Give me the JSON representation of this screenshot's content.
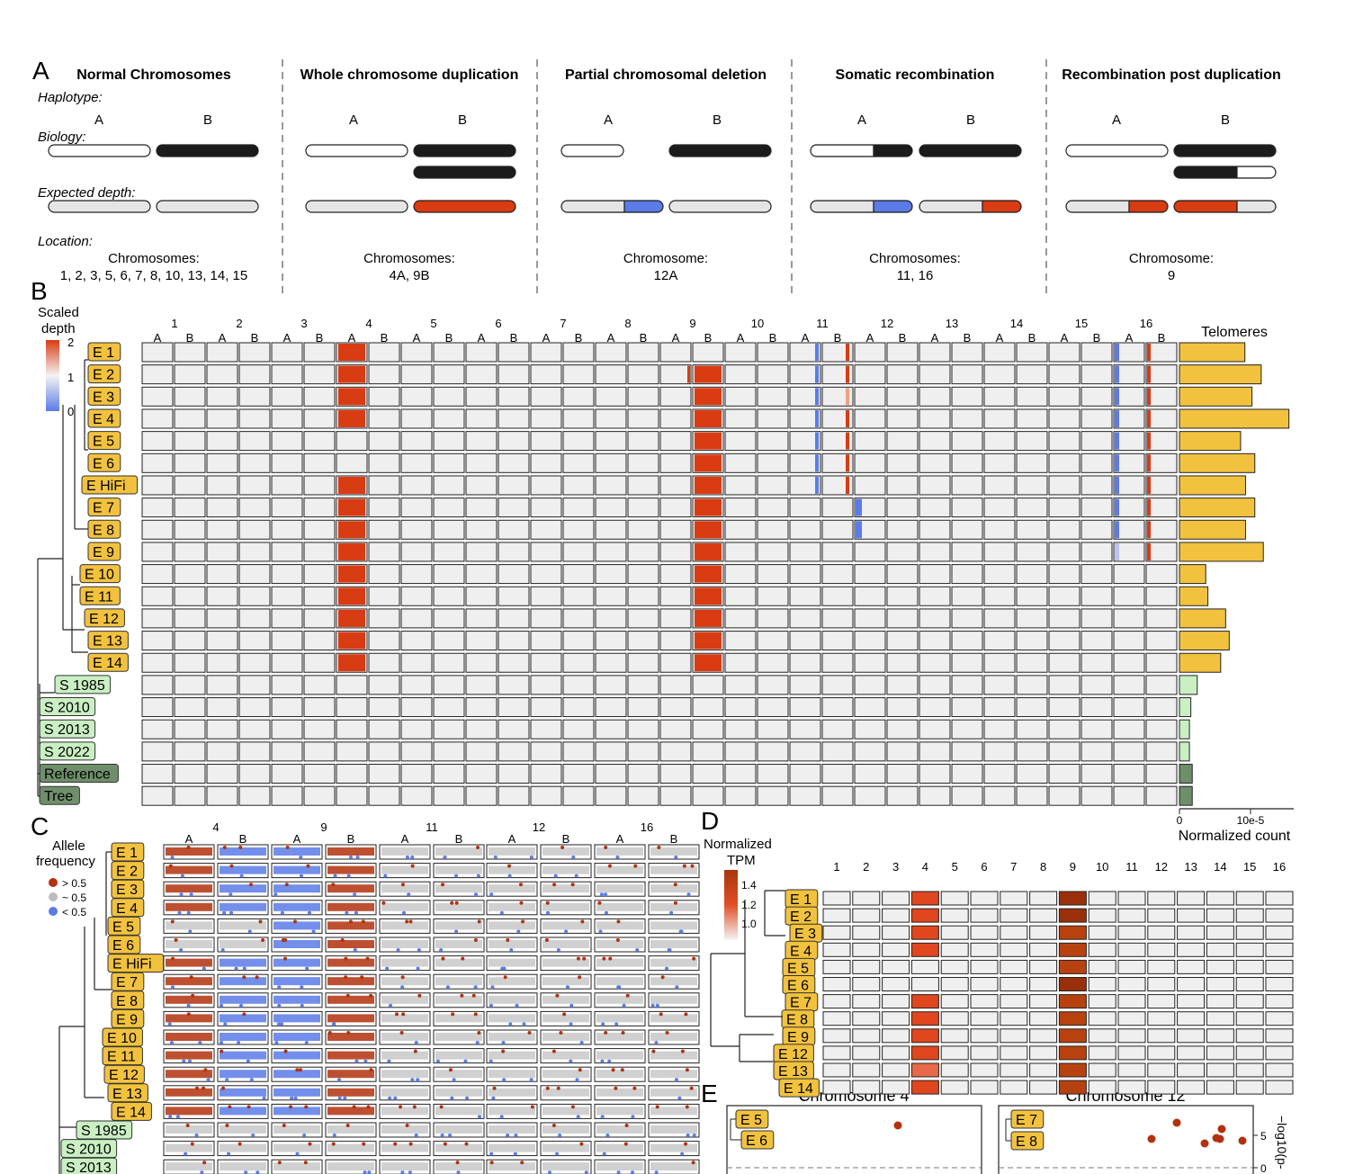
{
  "panelA": {
    "letter": "A",
    "row_labels": {
      "haplotype": "Haplotype:",
      "biology": "Biology:",
      "expected": "Expected depth:",
      "location": "Location:"
    },
    "columns": [
      {
        "title": "Normal Chromosomes",
        "loc1": "Chromosomes:",
        "loc2": "1, 2, 3, 5, 6, 7, 8, 10, 13, 14, 15"
      },
      {
        "title": "Whole chromosome duplication",
        "loc1": "Chromosomes:",
        "loc2": "4A, 9B"
      },
      {
        "title": "Partial chromosomal deletion",
        "loc1": "Chromosome:",
        "loc2": "12A"
      },
      {
        "title": "Somatic recombination",
        "loc1": "Chromosomes:",
        "loc2": "11, 16"
      },
      {
        "title": "Recombination post duplication",
        "loc1": "Chromosome:",
        "loc2": "9"
      }
    ],
    "hapA": "A",
    "hapB": "B"
  },
  "panelB": {
    "letter": "B",
    "legend_title": [
      "Scaled",
      "depth"
    ],
    "legend_ticks": [
      "2",
      "1",
      "0"
    ],
    "chromosomes": [
      "1",
      "2",
      "3",
      "4",
      "5",
      "6",
      "7",
      "8",
      "9",
      "10",
      "11",
      "12",
      "13",
      "14",
      "15",
      "16"
    ],
    "hap_labels": [
      "A",
      "B"
    ],
    "samples": [
      "E 1",
      "E 2",
      "E 3",
      "E 4",
      "E 5",
      "E 6",
      "E HiFi",
      "E 7",
      "E 8",
      "E 9",
      "E 10",
      "E 11",
      "E 12",
      "E 13",
      "E 14",
      "S 1985",
      "S 2010",
      "S 2013",
      "S 2022",
      "Reference",
      "Tree"
    ],
    "telomere_title": "Telomeres",
    "telomere_axis_label": "Normalized count",
    "telomere_ticks": [
      "0",
      "10e-5"
    ]
  },
  "panelC": {
    "letter": "C",
    "legend_title": [
      "Allele",
      "frequency"
    ],
    "legend_items": [
      "> 0.5",
      "~ 0.5",
      "< 0.5"
    ],
    "chromosomes": [
      "4",
      "9",
      "11",
      "12",
      "16"
    ],
    "hap_labels": [
      "A",
      "B"
    ],
    "samples": [
      "E 1",
      "E 2",
      "E 3",
      "E 4",
      "E 5",
      "E 6",
      "E HiFi",
      "E 7",
      "E 8",
      "E 9",
      "E 10",
      "E 11",
      "E 12",
      "E 13",
      "E 14",
      "S 1985",
      "S 2010",
      "S 2013"
    ]
  },
  "panelD": {
    "letter": "D",
    "legend_title": [
      "Normalized",
      "TPM"
    ],
    "legend_ticks": [
      "1.4",
      "1.2",
      "1.0"
    ],
    "chromosomes": [
      "1",
      "2",
      "3",
      "4",
      "5",
      "6",
      "7",
      "8",
      "9",
      "10",
      "11",
      "12",
      "13",
      "14",
      "15",
      "16"
    ],
    "samples": [
      "E 1",
      "E 2",
      "E 3",
      "E 4",
      "E 5",
      "E 6",
      "E 7",
      "E 8",
      "E 9",
      "E 12",
      "E 13",
      "E 14"
    ],
    "tpm_chr4": [
      1.4,
      1.4,
      1.4,
      1.4,
      1.0,
      1.0,
      1.4,
      1.4,
      1.4,
      1.4,
      1.3,
      1.4
    ],
    "tpm_chr9": [
      1.5,
      1.5,
      1.45,
      1.45,
      1.45,
      1.55,
      1.45,
      1.45,
      1.45,
      1.45,
      1.45,
      1.45
    ]
  },
  "panelE": {
    "letter": "E",
    "plots": [
      {
        "title": "Chromosome 4",
        "labels": [
          "E 5",
          "E 6"
        ]
      },
      {
        "title": "Chromosome 12",
        "labels": [
          "E 7",
          "E 8"
        ]
      }
    ],
    "y_axis_label": "−log10(p-",
    "y_ticks": [
      "5",
      "0"
    ]
  },
  "colors": {
    "gain": "#d93b12",
    "loss": "#5b7be8",
    "ecuador": "#f2c23e",
    "sri_lanka": "#c9efc2",
    "reference": "#6f8f6b",
    "cell": "#efefef",
    "dup_dark": "#a8360d"
  }
}
